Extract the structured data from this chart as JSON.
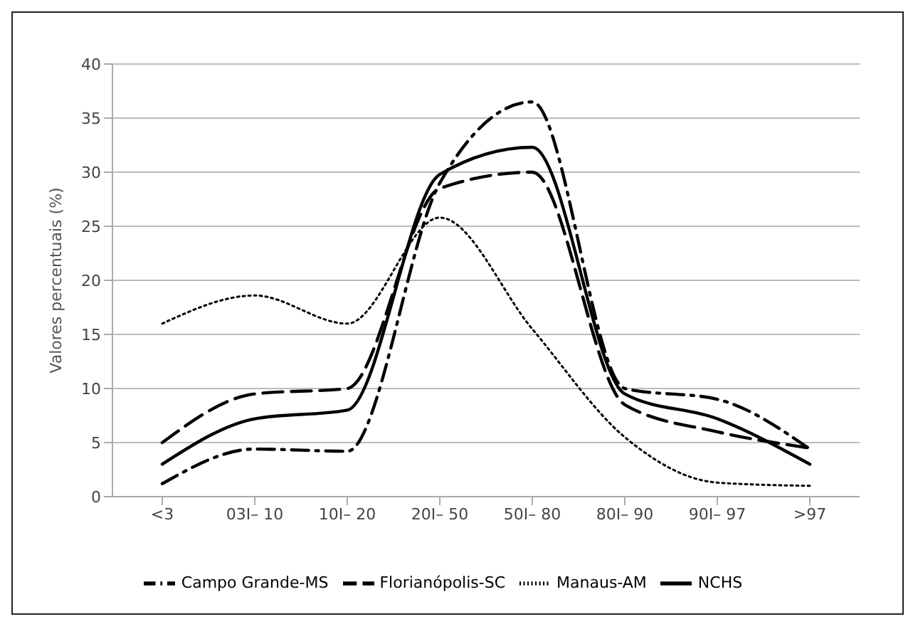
{
  "chart_data": {
    "type": "line",
    "ylabel": "Valores percentuais (%)",
    "categories": [
      "<3",
      "03I– 10",
      "10I– 20",
      "20I– 50",
      "50I– 80",
      "80I– 90",
      "90I– 97",
      ">97"
    ],
    "series": [
      {
        "name": "NCHS",
        "color": "#000000",
        "line_style": "solid",
        "values": [
          3,
          7.2,
          8,
          29.8,
          32.3,
          9.5,
          7.2,
          3
        ]
      },
      {
        "name": "Manaus-AM",
        "color": "#000000",
        "line_style": "dotted",
        "values": [
          16,
          18.6,
          16,
          25.8,
          15.5,
          5.5,
          1.3,
          1
        ]
      },
      {
        "name": "Campo Grande-MS",
        "color": "#000000",
        "line_style": "dashdot",
        "values": [
          1.2,
          4.4,
          4.2,
          29,
          36.5,
          10,
          9,
          4.4
        ]
      },
      {
        "name": "Florianópolis-SC",
        "color": "#000000",
        "line_style": "dashed",
        "values": [
          5,
          9.5,
          10,
          28.5,
          30,
          8.5,
          6,
          4.5
        ]
      }
    ],
    "ylim": [
      0,
      40
    ],
    "yticks": [
      0,
      5,
      10,
      15,
      20,
      25,
      30,
      35,
      40
    ],
    "grid": "y",
    "legend": "bottom",
    "marker": "none"
  }
}
